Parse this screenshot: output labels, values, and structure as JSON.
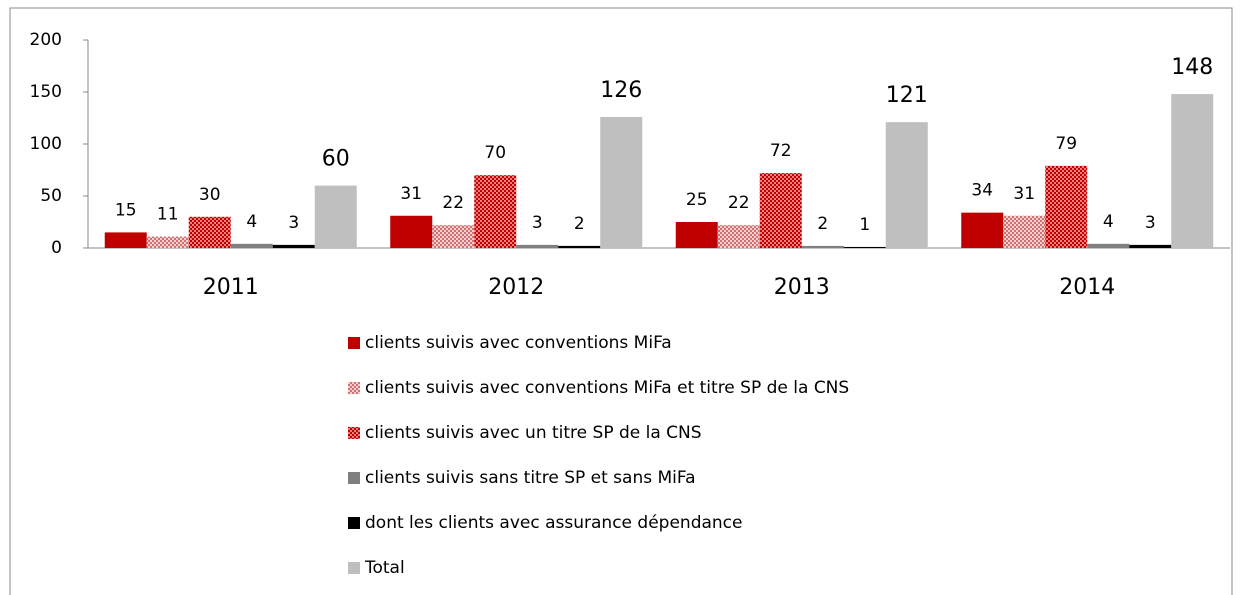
{
  "chart_data": {
    "type": "bar",
    "categories": [
      "2011",
      "2012",
      "2013",
      "2014"
    ],
    "series": [
      {
        "name": "clients suivis avec conventions MiFa",
        "color": "#c00000",
        "values": [
          15,
          31,
          25,
          34
        ]
      },
      {
        "name": "clients suivis avec conventions MiFa et titre SP de la CNS",
        "color": "#e8a0a0",
        "pattern": "dots",
        "values": [
          11,
          22,
          22,
          31
        ]
      },
      {
        "name": "clients suivis avec un titre SP de la CNS",
        "color": "#c00000",
        "pattern": "checker",
        "values": [
          30,
          70,
          72,
          79
        ]
      },
      {
        "name": "clients suivis sans titre SP et sans MiFa",
        "color": "#808080",
        "values": [
          4,
          3,
          2,
          4
        ]
      },
      {
        "name": "dont les clients avec assurance dépendance",
        "color": "#000000",
        "values": [
          3,
          2,
          1,
          3
        ]
      },
      {
        "name": "Total",
        "color": "#bfbfbf",
        "values": [
          60,
          126,
          121,
          148
        ]
      }
    ],
    "ylim": [
      0,
      200
    ],
    "yticks": [
      0,
      50,
      100,
      150,
      200
    ],
    "grid": false,
    "legend": "bottom"
  }
}
